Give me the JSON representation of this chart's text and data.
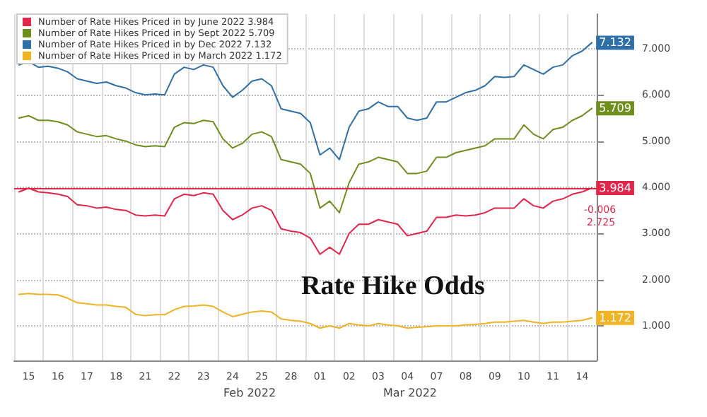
{
  "chart_data": {
    "type": "line",
    "title": "Rate Hike Odds",
    "categories": [
      null,
      "15",
      null,
      null,
      "16",
      null,
      null,
      "17",
      null,
      null,
      "18",
      null,
      null,
      "21",
      null,
      null,
      "22",
      null,
      null,
      "23",
      null,
      null,
      "24",
      null,
      null,
      "25",
      null,
      null,
      "28",
      null,
      null,
      "01",
      null,
      null,
      "02",
      null,
      null,
      "03",
      null,
      null,
      "04",
      null,
      null,
      "07",
      null,
      null,
      "08",
      null,
      null,
      "09",
      null,
      null,
      "10",
      null,
      null,
      "11",
      null,
      null,
      "14",
      null
    ],
    "series": [
      {
        "name": "Number of Rate Hikes Priced in by June 2022 3.984",
        "color": "#e4254a",
        "values": [
          3.9,
          3.98,
          3.9,
          3.88,
          3.85,
          3.8,
          3.62,
          3.6,
          3.55,
          3.57,
          3.52,
          3.5,
          3.4,
          3.38,
          3.4,
          3.38,
          3.75,
          3.85,
          3.82,
          3.88,
          3.85,
          3.5,
          3.3,
          3.4,
          3.55,
          3.6,
          3.5,
          3.1,
          3.05,
          3.02,
          2.9,
          2.55,
          2.7,
          2.55,
          3.0,
          3.2,
          3.2,
          3.3,
          3.25,
          3.2,
          2.95,
          3.0,
          3.05,
          3.35,
          3.35,
          3.4,
          3.38,
          3.4,
          3.45,
          3.55,
          3.55,
          3.55,
          3.75,
          3.6,
          3.55,
          3.7,
          3.75,
          3.85,
          3.9,
          3.984
        ],
        "value_labels": [
          null,
          null,
          null,
          null,
          null,
          null,
          null,
          null,
          null,
          null,
          null,
          null,
          null,
          null,
          null,
          null,
          null,
          null,
          null,
          null,
          null,
          null,
          null,
          null,
          null,
          null,
          null,
          null,
          null,
          null,
          null,
          null,
          null,
          null,
          null,
          null,
          null,
          null,
          null,
          null,
          null,
          null,
          null,
          null,
          null,
          null,
          null,
          null,
          null,
          null,
          null,
          null,
          null,
          null,
          null,
          null,
          null,
          null,
          null,
          "3.984"
        ]
      },
      {
        "name": "Number of Rate Hikes Priced in by Sept 2022 5.709",
        "color": "#6e8f1e",
        "values": [
          5.5,
          5.55,
          5.45,
          5.45,
          5.42,
          5.35,
          5.2,
          5.15,
          5.1,
          5.12,
          5.05,
          5.0,
          4.92,
          4.88,
          4.9,
          4.88,
          5.3,
          5.4,
          5.38,
          5.45,
          5.42,
          5.05,
          4.85,
          4.95,
          5.15,
          5.2,
          5.1,
          4.6,
          4.55,
          4.5,
          4.3,
          3.55,
          3.7,
          3.45,
          4.1,
          4.5,
          4.55,
          4.65,
          4.6,
          4.55,
          4.3,
          4.3,
          4.35,
          4.65,
          4.65,
          4.75,
          4.8,
          4.85,
          4.9,
          5.05,
          5.05,
          5.05,
          5.35,
          5.15,
          5.05,
          5.25,
          5.3,
          5.45,
          5.55,
          5.709
        ],
        "value_labels": [
          null,
          null,
          null,
          null,
          null,
          null,
          null,
          null,
          null,
          null,
          null,
          null,
          null,
          null,
          null,
          null,
          null,
          null,
          null,
          null,
          null,
          null,
          null,
          null,
          null,
          null,
          null,
          null,
          null,
          null,
          null,
          null,
          null,
          null,
          null,
          null,
          null,
          null,
          null,
          null,
          null,
          null,
          null,
          null,
          null,
          null,
          null,
          null,
          null,
          null,
          null,
          null,
          null,
          null,
          null,
          null,
          null,
          null,
          null,
          "5.709"
        ]
      },
      {
        "name": "Number of Rate Hikes Priced in by Dec 2022 7.132",
        "color": "#2f6fa8",
        "values": [
          6.65,
          6.72,
          6.6,
          6.62,
          6.58,
          6.5,
          6.35,
          6.3,
          6.25,
          6.28,
          6.2,
          6.15,
          6.05,
          6.0,
          6.02,
          6.0,
          6.45,
          6.6,
          6.55,
          6.65,
          6.6,
          6.2,
          5.95,
          6.1,
          6.3,
          6.35,
          6.2,
          5.7,
          5.65,
          5.6,
          5.4,
          4.7,
          4.85,
          4.6,
          5.3,
          5.65,
          5.7,
          5.85,
          5.75,
          5.75,
          5.5,
          5.45,
          5.5,
          5.85,
          5.85,
          5.95,
          6.05,
          6.1,
          6.2,
          6.4,
          6.38,
          6.4,
          6.65,
          6.55,
          6.45,
          6.6,
          6.65,
          6.85,
          6.95,
          7.132
        ],
        "value_labels": [
          null,
          null,
          null,
          null,
          null,
          null,
          null,
          null,
          null,
          null,
          null,
          null,
          null,
          null,
          null,
          null,
          null,
          null,
          null,
          null,
          null,
          null,
          null,
          null,
          null,
          null,
          null,
          null,
          null,
          null,
          null,
          null,
          null,
          null,
          null,
          null,
          null,
          null,
          null,
          null,
          null,
          null,
          null,
          null,
          null,
          null,
          null,
          null,
          null,
          null,
          null,
          null,
          null,
          null,
          null,
          null,
          null,
          null,
          null,
          "7.132"
        ]
      },
      {
        "name": "Number of Rate Hikes Priced in by March 2022 1.172",
        "color": "#f0b323",
        "values": [
          1.68,
          1.7,
          1.68,
          1.68,
          1.67,
          1.6,
          1.5,
          1.48,
          1.45,
          1.45,
          1.42,
          1.4,
          1.25,
          1.22,
          1.24,
          1.24,
          1.35,
          1.42,
          1.43,
          1.45,
          1.42,
          1.3,
          1.2,
          1.25,
          1.3,
          1.32,
          1.3,
          1.15,
          1.12,
          1.1,
          1.05,
          0.95,
          1.0,
          0.95,
          1.05,
          1.02,
          1.0,
          1.05,
          1.02,
          1.0,
          0.95,
          0.97,
          0.98,
          1.0,
          1.0,
          1.0,
          1.02,
          1.03,
          1.05,
          1.08,
          1.08,
          1.1,
          1.12,
          1.08,
          1.05,
          1.08,
          1.08,
          1.1,
          1.12,
          1.172
        ],
        "value_labels": [
          null,
          null,
          null,
          null,
          null,
          null,
          null,
          null,
          null,
          null,
          null,
          null,
          null,
          null,
          null,
          null,
          null,
          null,
          null,
          null,
          null,
          null,
          null,
          null,
          null,
          null,
          null,
          null,
          null,
          null,
          null,
          null,
          null,
          null,
          null,
          null,
          null,
          null,
          null,
          null,
          null,
          null,
          null,
          null,
          null,
          null,
          null,
          null,
          null,
          null,
          null,
          null,
          null,
          null,
          null,
          null,
          null,
          null,
          null,
          "1.172"
        ]
      }
    ],
    "ylim": [
      0.25,
      7.75
    ],
    "yticks": [
      {
        "value": 1,
        "label": "1.000"
      },
      {
        "value": 2,
        "label": "2.000"
      },
      {
        "value": 3,
        "label": "3.000"
      },
      {
        "value": 4,
        "label": "4.000"
      },
      {
        "value": 5,
        "label": "5.000"
      },
      {
        "value": 6,
        "label": "6.000"
      },
      {
        "value": 7,
        "label": "7.000"
      }
    ],
    "ref_lines": [
      {
        "axis": "y",
        "value": 3.984,
        "label": null,
        "color": "#e4254a"
      }
    ],
    "annotations": [
      "Feb 2022",
      "Mar 2022",
      "-0.006",
      "2.725"
    ],
    "grid": true,
    "legend": "top left",
    "marker": "none",
    "line_style": "solid"
  }
}
